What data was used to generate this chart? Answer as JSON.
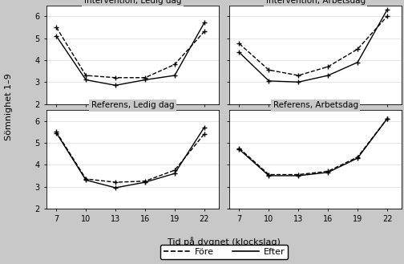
{
  "x": [
    7,
    10,
    13,
    16,
    19,
    22
  ],
  "panels": [
    {
      "title": "Intervention, Ledig dag",
      "fore": [
        5.5,
        3.3,
        3.2,
        3.2,
        3.8,
        5.3
      ],
      "efter": [
        5.1,
        3.1,
        2.85,
        3.1,
        3.3,
        5.7
      ]
    },
    {
      "title": "Intervention, Arbetsdag",
      "fore": [
        4.75,
        3.55,
        3.3,
        3.7,
        4.5,
        6.0
      ],
      "efter": [
        4.35,
        3.05,
        3.0,
        3.3,
        3.9,
        6.3
      ]
    },
    {
      "title": "Referens, Ledig dag",
      "fore": [
        5.5,
        3.35,
        3.2,
        3.25,
        3.75,
        5.4
      ],
      "efter": [
        5.45,
        3.3,
        2.95,
        3.2,
        3.6,
        5.7
      ]
    },
    {
      "title": "Referens, Arbetsdag",
      "fore": [
        4.75,
        3.55,
        3.55,
        3.7,
        4.35,
        6.1
      ],
      "efter": [
        4.7,
        3.5,
        3.5,
        3.65,
        4.3,
        6.1
      ]
    }
  ],
  "xlabel": "Tid på dygnet (klockslag)",
  "ylabel": "Sömnighet 1–9",
  "ylim": [
    2,
    6.5
  ],
  "yticks": [
    2,
    3,
    4,
    5,
    6
  ],
  "xticks": [
    7,
    10,
    13,
    16,
    19,
    22
  ],
  "legend_fore": "Före",
  "legend_efter": "Efter",
  "title_bg": "#c8c8c8",
  "panel_bg": "#ffffff",
  "outer_bg": "#c8c8c8",
  "line_color": "black",
  "marker": "+",
  "markersize": 5,
  "linewidth": 1.0,
  "fore_linestyle": "--",
  "efter_linestyle": "-",
  "title_fontsize": 7.5,
  "tick_fontsize": 7,
  "label_fontsize": 8,
  "legend_fontsize": 8
}
